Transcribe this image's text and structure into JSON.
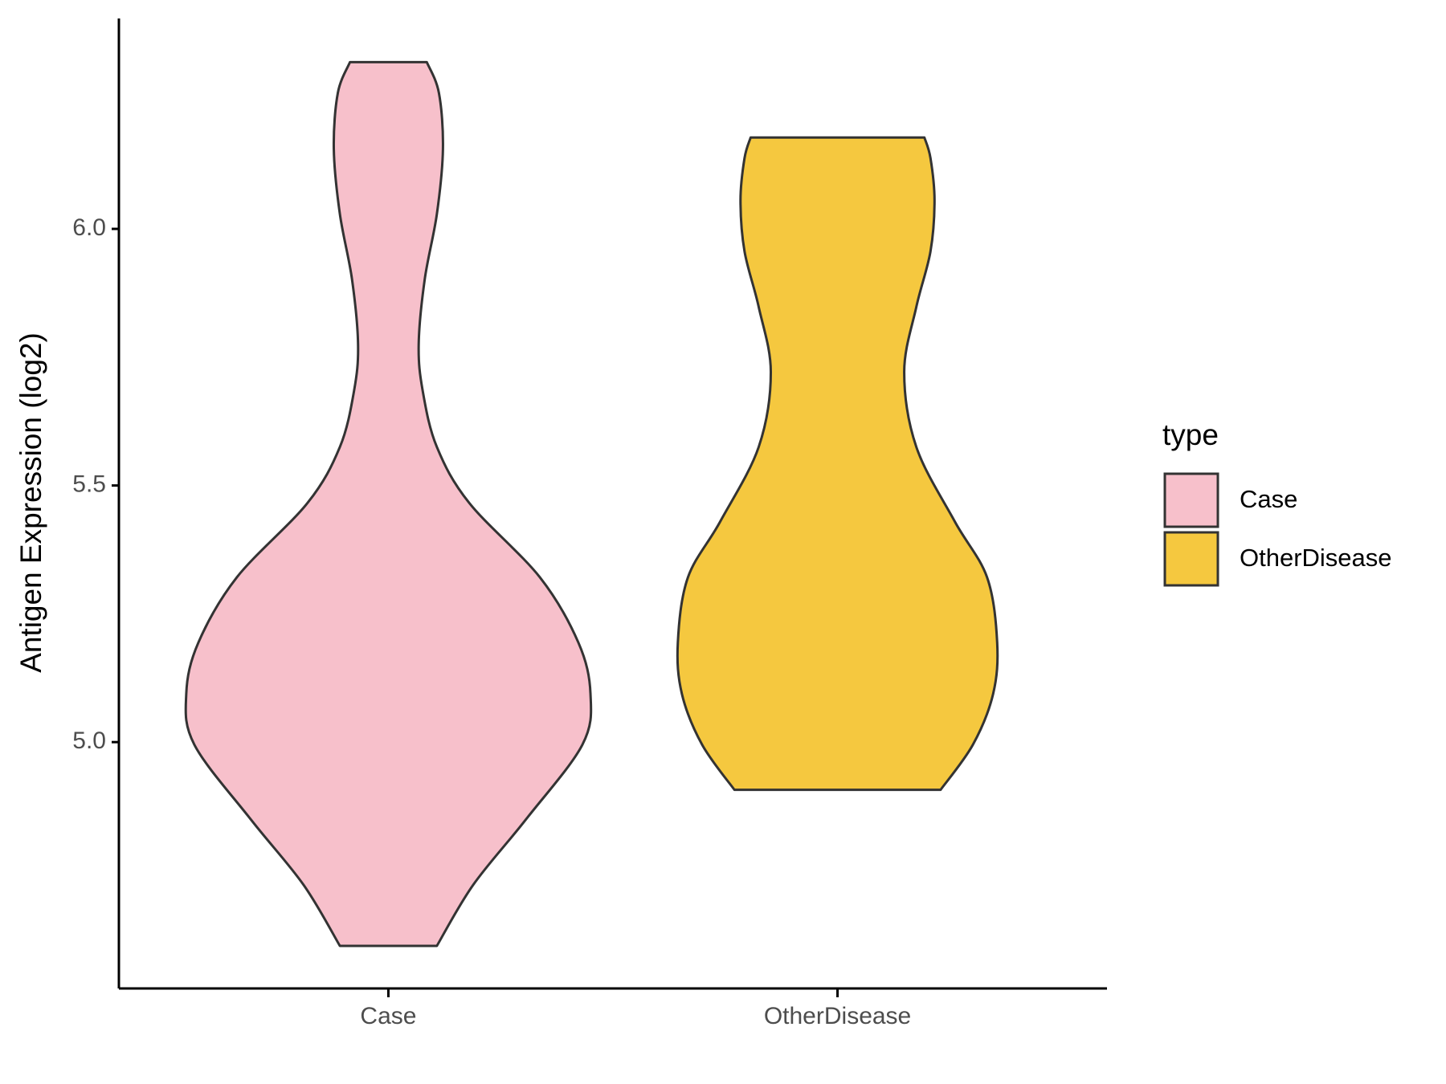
{
  "chart_data": {
    "type": "violin",
    "y_label": "Antigen Expression (log2)",
    "categories": [
      "Case",
      "OtherDisease"
    ],
    "legend_title": "type",
    "legend_position": "right",
    "ylim": [
      4.52,
      6.41
    ],
    "yticks": [
      {
        "value": 5,
        "label": "5.0"
      },
      5.5,
      {
        "value": 6,
        "label": "6.0"
      }
    ],
    "series": [
      {
        "name": "Case",
        "color": "#F7C0CB",
        "y": [
          4.603,
          4.722,
          4.849,
          4.995,
          5.094,
          5.194,
          5.321,
          5.466,
          5.575,
          5.684,
          5.775,
          5.902,
          6.029,
          6.156,
          6.265,
          6.325
        ],
        "density": [
          0.24,
          0.42,
          0.68,
          0.96,
          1.0,
          0.94,
          0.75,
          0.4,
          0.24,
          0.17,
          0.15,
          0.18,
          0.24,
          0.27,
          0.25,
          0.19
        ]
      },
      {
        "name": "OtherDisease",
        "color": "#F5C83F",
        "y": [
          4.907,
          4.995,
          5.094,
          5.194,
          5.321,
          5.43,
          5.575,
          5.721,
          5.848,
          5.956,
          6.056,
          6.138,
          6.178
        ],
        "density": [
          0.51,
          0.67,
          0.77,
          0.79,
          0.74,
          0.58,
          0.39,
          0.33,
          0.39,
          0.46,
          0.48,
          0.46,
          0.43
        ]
      }
    ]
  }
}
